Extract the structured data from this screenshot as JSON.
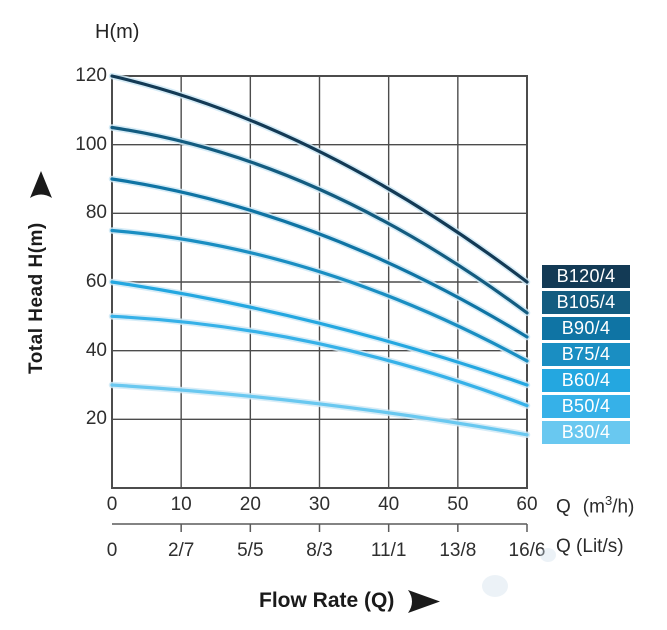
{
  "header": {
    "h_unit": "H(m)"
  },
  "yaxis": {
    "title": "Total Head H(m)",
    "ticks": [
      "120",
      "100",
      "80",
      "60",
      "40",
      "20"
    ]
  },
  "xaxis": {
    "title": "Flow Rate (Q)",
    "unit_m3h": {
      "pre": "Q",
      "open": "(m",
      "sup": "3",
      "close": "/h)"
    },
    "unit_lits": "Q  (Lit/s)"
  },
  "chart_data": {
    "type": "line",
    "title": "Pump performance curves: Total Head vs Flow Rate",
    "xlabel": "Flow Rate Q (m3/h)",
    "ylabel": "Total Head H(m)",
    "xlim": [
      0,
      60
    ],
    "ylim": [
      0,
      120
    ],
    "grid": true,
    "legend_position": "right",
    "x": [
      0,
      30,
      60
    ],
    "series": [
      {
        "name": "B120/4",
        "color": "#133a55",
        "values": [
          120,
          98,
          60
        ]
      },
      {
        "name": "B105/4",
        "color": "#135c80",
        "values": [
          105,
          87,
          51
        ]
      },
      {
        "name": "B90/4",
        "color": "#0f74a4",
        "values": [
          90,
          74,
          44
        ]
      },
      {
        "name": "B75/4",
        "color": "#1a8ec2",
        "values": [
          75,
          63,
          37
        ]
      },
      {
        "name": "B60/4",
        "color": "#24a7e0",
        "values": [
          60,
          48,
          30
        ]
      },
      {
        "name": "B50/4",
        "color": "#36b1e8",
        "values": [
          50,
          42,
          24
        ]
      },
      {
        "name": "B30/4",
        "color": "#69c8f0",
        "values": [
          30,
          24.5,
          15.5
        ]
      }
    ],
    "x_gridlines": [
      0,
      10,
      20,
      30,
      40,
      50,
      60
    ],
    "y_gridlines": [
      0,
      20,
      40,
      60,
      80,
      100,
      120
    ],
    "x_ticks_m3h": [
      "0",
      "10",
      "20",
      "30",
      "40",
      "50",
      "60"
    ],
    "x_ticks_lits": [
      "0",
      "2/7",
      "5/5",
      "8/3",
      "11/1",
      "13/8",
      "16/6"
    ],
    "grid_color": "#4c4c4c",
    "halo_color": "#cfe9f6"
  }
}
